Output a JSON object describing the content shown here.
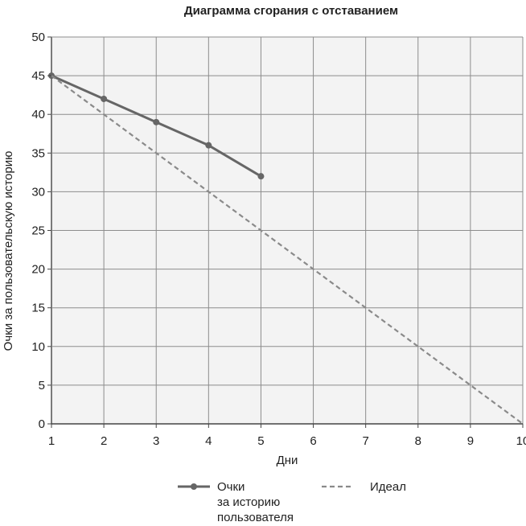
{
  "chart_data": {
    "type": "line",
    "title": "Диаграмма сгорания с отставанием",
    "xlabel": "Дни",
    "ylabel": "Очки за пользовательскую историю",
    "x": [
      1,
      2,
      3,
      4,
      5,
      6,
      7,
      8,
      9,
      10
    ],
    "x_ticks": [
      "1",
      "2",
      "3",
      "4",
      "5",
      "6",
      "7",
      "8",
      "9",
      "10"
    ],
    "y_ticks": [
      "0",
      "5",
      "10",
      "15",
      "20",
      "25",
      "30",
      "35",
      "40",
      "45",
      "50"
    ],
    "xlim": [
      1,
      10
    ],
    "ylim": [
      0,
      50
    ],
    "grid": true,
    "legend_position": "bottom",
    "series": [
      {
        "name_lines": [
          "Очки",
          "за историю",
          "пользователя"
        ],
        "style": "solid-markers",
        "color": "#666666",
        "x": [
          1,
          2,
          3,
          4,
          5
        ],
        "values": [
          45,
          42,
          39,
          36,
          32
        ]
      },
      {
        "name_lines": [
          "Идеал"
        ],
        "style": "dashed",
        "color": "#8a8a8a",
        "x": [
          1,
          10
        ],
        "values": [
          45,
          0
        ]
      }
    ]
  }
}
